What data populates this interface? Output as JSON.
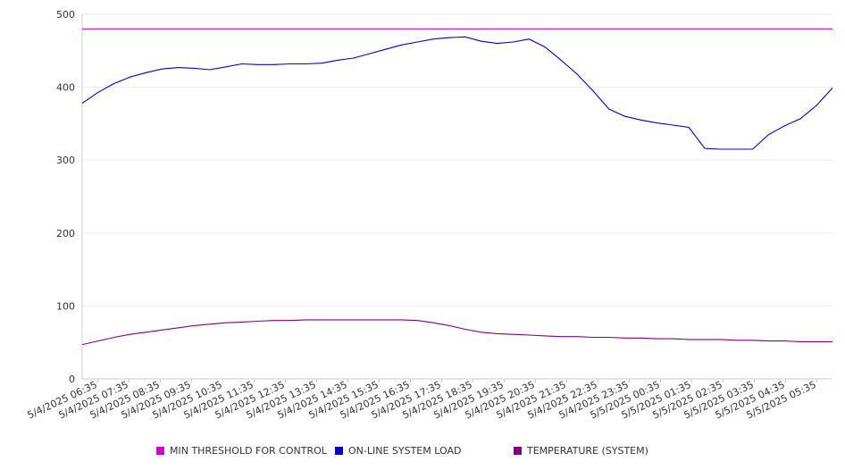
{
  "chart_data": {
    "type": "line",
    "title": "",
    "xlabel": "",
    "ylabel": "",
    "ylim": [
      0,
      500
    ],
    "yticks": [
      0,
      100,
      200,
      300,
      400,
      500
    ],
    "grid": true,
    "legend_position": "bottom",
    "x_tick_labels": [
      "5/4/2025 06:35",
      "5/4/2025 07:35",
      "5/4/2025 08:35",
      "5/4/2025 09:35",
      "5/4/2025 10:35",
      "5/4/2025 11:35",
      "5/4/2025 12:35",
      "5/4/2025 13:35",
      "5/4/2025 14:35",
      "5/4/2025 15:35",
      "5/4/2025 16:35",
      "5/4/2025 17:35",
      "5/4/2025 18:35",
      "5/4/2025 19:35",
      "5/4/2025 20:35",
      "5/4/2025 21:35",
      "5/4/2025 22:35",
      "5/4/2025 23:35",
      "5/5/2025 00:35",
      "5/5/2025 01:35",
      "5/5/2025 02:35",
      "5/5/2025 03:35",
      "5/5/2025 04:35",
      "5/5/2025 05:35"
    ],
    "x": [
      "06:35",
      "07:05",
      "07:35",
      "08:05",
      "08:35",
      "09:05",
      "09:35",
      "10:05",
      "10:35",
      "11:05",
      "11:35",
      "12:05",
      "12:35",
      "13:05",
      "13:35",
      "14:05",
      "14:35",
      "15:05",
      "15:35",
      "16:05",
      "16:35",
      "17:05",
      "17:35",
      "18:05",
      "18:35",
      "19:05",
      "19:35",
      "20:05",
      "20:35",
      "21:05",
      "21:35",
      "22:05",
      "22:35",
      "23:05",
      "23:35",
      "00:05",
      "00:35",
      "01:05",
      "01:35",
      "02:05",
      "02:35",
      "03:05",
      "03:35",
      "04:05",
      "04:35",
      "05:05",
      "05:35",
      "06:05"
    ],
    "series": [
      {
        "name": "MIN THRESHOLD FOR CONTROL",
        "color": "#d000d0",
        "values": [
          480,
          480,
          480,
          480,
          480,
          480,
          480,
          480,
          480,
          480,
          480,
          480,
          480,
          480,
          480,
          480,
          480,
          480,
          480,
          480,
          480,
          480,
          480,
          480,
          480,
          480,
          480,
          480,
          480,
          480,
          480,
          480,
          480,
          480,
          480,
          480,
          480,
          480,
          480,
          480,
          480,
          480,
          480,
          480,
          480,
          480,
          480,
          480
        ]
      },
      {
        "name": "ON-LINE SYSTEM LOAD",
        "color": "#0000cc",
        "values": [
          378,
          393,
          405,
          414,
          420,
          425,
          427,
          426,
          424,
          428,
          432,
          431,
          431,
          432,
          432,
          433,
          437,
          440,
          446,
          452,
          458,
          462,
          466,
          468,
          469,
          463,
          460,
          462,
          466,
          455,
          437,
          418,
          395,
          370,
          360,
          355,
          351,
          348,
          345,
          316,
          315,
          315,
          315,
          335,
          347,
          357,
          375,
          399
        ]
      },
      {
        "name": "TEMPERATURE (SYSTEM)",
        "color": "#800080",
        "values": [
          47,
          52,
          57,
          61,
          64,
          67,
          70,
          73,
          75,
          77,
          78,
          79,
          80,
          80,
          81,
          81,
          81,
          81,
          81,
          81,
          81,
          80,
          77,
          73,
          68,
          64,
          62,
          61,
          60,
          59,
          58,
          58,
          57,
          57,
          56,
          56,
          55,
          55,
          54,
          54,
          54,
          53,
          53,
          52,
          52,
          51,
          51,
          51
        ]
      }
    ]
  }
}
